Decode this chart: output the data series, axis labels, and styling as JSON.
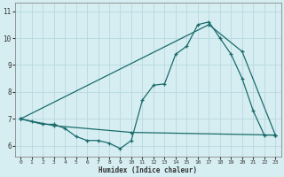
{
  "xlabel": "Humidex (Indice chaleur)",
  "background_color": "#d6eef2",
  "grid_color": "#b8d8e0",
  "line_color": "#1a6b6b",
  "xlim": [
    -0.5,
    23.5
  ],
  "ylim": [
    5.6,
    11.3
  ],
  "xticks": [
    0,
    1,
    2,
    3,
    4,
    5,
    6,
    7,
    8,
    9,
    10,
    11,
    12,
    13,
    14,
    15,
    16,
    17,
    18,
    19,
    20,
    21,
    22,
    23
  ],
  "yticks": [
    6,
    7,
    8,
    9,
    10,
    11
  ],
  "line_hourly": {
    "x": [
      0,
      1,
      2,
      3,
      4,
      5,
      6,
      7,
      8,
      9,
      10,
      11,
      12,
      13,
      14,
      15,
      16,
      17,
      18,
      19,
      20,
      21,
      22,
      23
    ],
    "y": [
      7.0,
      6.9,
      6.8,
      6.8,
      6.65,
      6.35,
      6.2,
      6.2,
      6.1,
      5.9,
      6.2,
      7.7,
      8.25,
      8.3,
      9.4,
      9.7,
      10.5,
      10.6,
      10.0,
      9.4,
      8.5,
      7.3,
      6.4,
      6.4
    ]
  },
  "line_max_envelope": {
    "x": [
      0,
      17,
      20,
      23
    ],
    "y": [
      7.0,
      10.5,
      9.5,
      6.4
    ]
  },
  "line_min_envelope": {
    "x": [
      0,
      3,
      10,
      23
    ],
    "y": [
      7.0,
      6.75,
      6.5,
      6.4
    ]
  }
}
